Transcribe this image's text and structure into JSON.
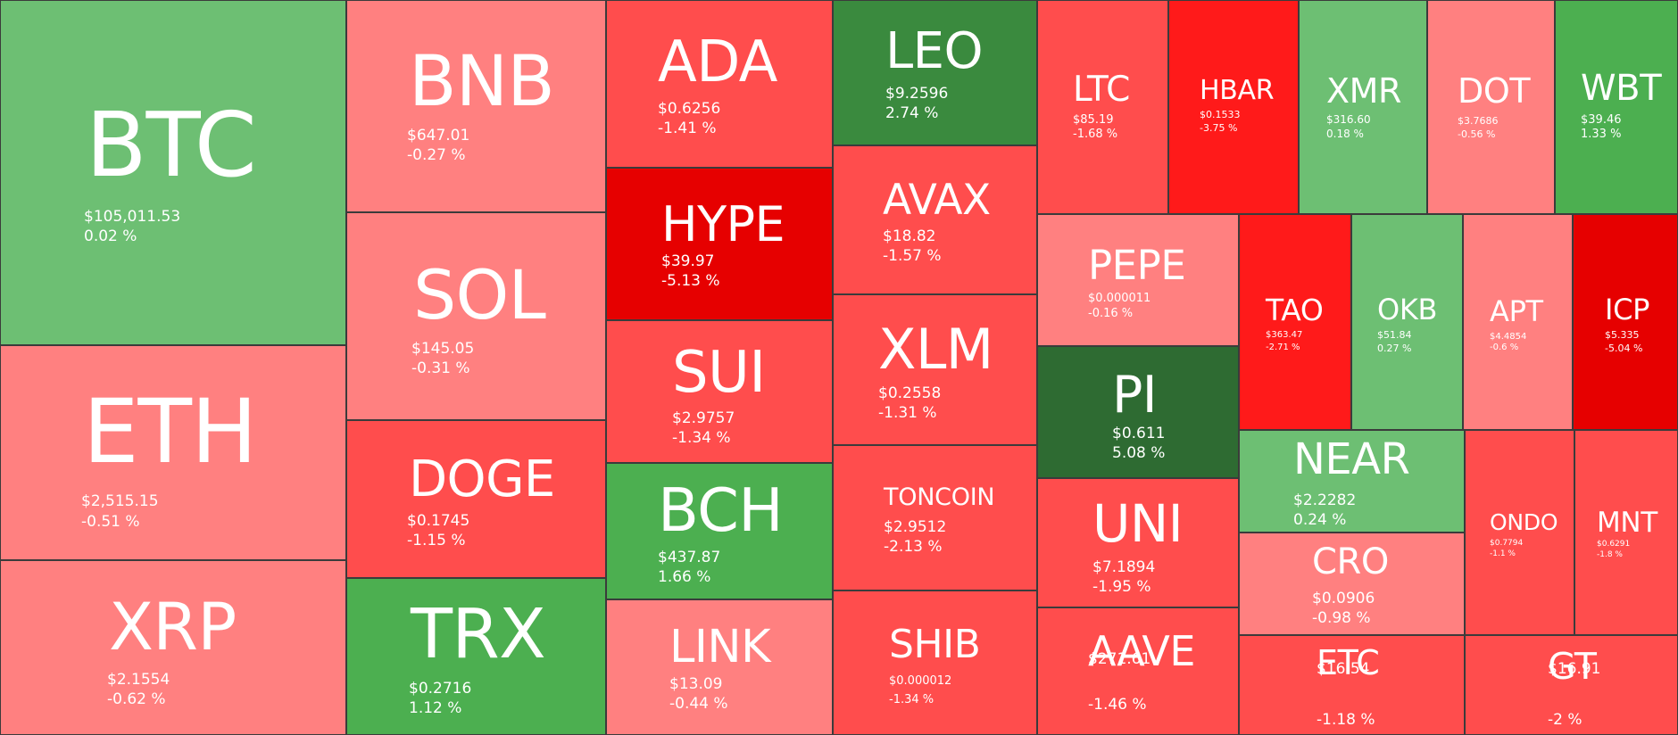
{
  "colors": {
    "green_light": "#6dbf73",
    "green_mid": "#4caf50",
    "green_dark": "#3a8a3e",
    "green_darker": "#2e6b32",
    "red_light": "#ff8080",
    "red_mid": "#ff4d4d",
    "red_strong": "#ff1a1a",
    "red_darkest": "#e60000"
  },
  "coins": [
    {
      "symbol": "BTC",
      "price": "$105,011.53",
      "change": "0.02 %",
      "color": "#6dbf73"
    },
    {
      "symbol": "ETH",
      "price": "$2,515.15",
      "change": "-0.51 %",
      "color": "#ff8080"
    },
    {
      "symbol": "XRP",
      "price": "$2.1554",
      "change": "-0.62 %",
      "color": "#ff8080"
    },
    {
      "symbol": "BNB",
      "price": "$647.01",
      "change": "-0.27 %",
      "color": "#ff8080"
    },
    {
      "symbol": "SOL",
      "price": "$145.05",
      "change": "-0.31 %",
      "color": "#ff8080"
    },
    {
      "symbol": "DOGE",
      "price": "$0.1745",
      "change": "-1.15 %",
      "color": "#ff4d4d"
    },
    {
      "symbol": "TRX",
      "price": "$0.2716",
      "change": "1.12 %",
      "color": "#4caf50"
    },
    {
      "symbol": "ADA",
      "price": "$0.6256",
      "change": "-1.41 %",
      "color": "#ff4d4d"
    },
    {
      "symbol": "HYPE",
      "price": "$39.97",
      "change": "-5.13 %",
      "color": "#e60000"
    },
    {
      "symbol": "SUI",
      "price": "$2.9757",
      "change": "-1.34 %",
      "color": "#ff4d4d"
    },
    {
      "symbol": "BCH",
      "price": "$437.87",
      "change": "1.66 %",
      "color": "#4caf50"
    },
    {
      "symbol": "LINK",
      "price": "$13.09",
      "change": "-0.44 %",
      "color": "#ff8080"
    },
    {
      "symbol": "LEO",
      "price": "$9.2596",
      "change": "2.74 %",
      "color": "#3a8a3e"
    },
    {
      "symbol": "AVAX",
      "price": "$18.82",
      "change": "-1.57 %",
      "color": "#ff4d4d"
    },
    {
      "symbol": "XLM",
      "price": "$0.2558",
      "change": "-1.31 %",
      "color": "#ff4d4d"
    },
    {
      "symbol": "TONCOIN",
      "price": "$2.9512",
      "change": "-2.13 %",
      "color": "#ff4d4d"
    },
    {
      "symbol": "SHIB",
      "price": "$0.000012",
      "change": "-1.34 %",
      "color": "#ff4d4d"
    },
    {
      "symbol": "LTC",
      "price": "$85.19",
      "change": "-1.68 %",
      "color": "#ff4d4d"
    },
    {
      "symbol": "HBAR",
      "price": "$0.1533",
      "change": "-3.75 %",
      "color": "#ff1a1a"
    },
    {
      "symbol": "XMR",
      "price": "$316.60",
      "change": "0.18 %",
      "color": "#6dbf73"
    },
    {
      "symbol": "DOT",
      "price": "$3.7686",
      "change": "-0.56 %",
      "color": "#ff8080"
    },
    {
      "symbol": "WBT",
      "price": "$39.46",
      "change": "1.33 %",
      "color": "#4caf50"
    },
    {
      "symbol": "PEPE",
      "price": "$0.000011",
      "change": "-0.16 %",
      "color": "#ff8080"
    },
    {
      "symbol": "PI",
      "price": "$0.611",
      "change": "5.08 %",
      "color": "#2e6b32"
    },
    {
      "symbol": "UNI",
      "price": "$7.1894",
      "change": "-1.95 %",
      "color": "#ff4d4d"
    },
    {
      "symbol": "AAVE",
      "price": "$271.61",
      "change": "-1.46 %",
      "color": "#ff4d4d"
    },
    {
      "symbol": "TAO",
      "price": "$363.47",
      "change": "-2.71 %",
      "color": "#ff1a1a"
    },
    {
      "symbol": "OKB",
      "price": "$51.84",
      "change": "0.27 %",
      "color": "#6dbf73"
    },
    {
      "symbol": "APT",
      "price": "$4.4854",
      "change": "-0.6 %",
      "color": "#ff8080"
    },
    {
      "symbol": "ICP",
      "price": "$5.335",
      "change": "-5.04 %",
      "color": "#e60000"
    },
    {
      "symbol": "NEAR",
      "price": "$2.2282",
      "change": "0.24 %",
      "color": "#6dbf73"
    },
    {
      "symbol": "CRO",
      "price": "$0.0906",
      "change": "-0.98 %",
      "color": "#ff8080"
    },
    {
      "symbol": "ETC",
      "price": "$16.54",
      "change": "-1.18 %",
      "color": "#ff4d4d"
    },
    {
      "symbol": "ONDO",
      "price": "$0.7794",
      "change": "-1.1 %",
      "color": "#ff4d4d"
    },
    {
      "symbol": "MNT",
      "price": "$0.6291",
      "change": "-1.8 %",
      "color": "#ff4d4d"
    },
    {
      "symbol": "GT",
      "price": "$16.91",
      "change": "-2 %",
      "color": "#ff4d4d"
    }
  ]
}
